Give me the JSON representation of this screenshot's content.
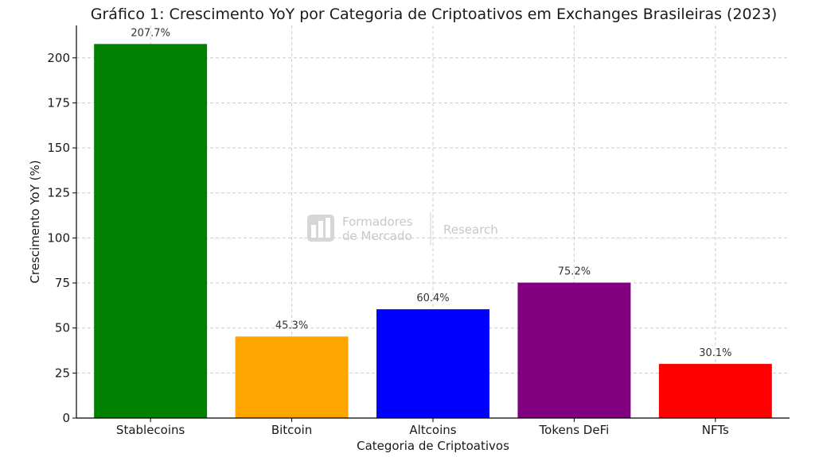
{
  "chart_data": {
    "type": "bar",
    "title": "Gráfico 1: Crescimento YoY por Categoria de Criptoativos em Exchanges Brasileiras (2023)",
    "xlabel": "Categoria de Criptoativos",
    "ylabel": "Crescimento YoY (%)",
    "categories": [
      "Stablecoins",
      "Bitcoin",
      "Altcoins",
      "Tokens DeFi",
      "NFTs"
    ],
    "values": [
      207.7,
      45.3,
      60.4,
      75.2,
      30.1
    ],
    "data_labels": [
      "207.7%",
      "45.3%",
      "60.4%",
      "75.2%",
      "30.1%"
    ],
    "colors": [
      "#008000",
      "#FFA500",
      "#0000FF",
      "#800080",
      "#FF0000"
    ],
    "ylim": [
      0,
      218
    ],
    "yticks": [
      0,
      25,
      50,
      75,
      100,
      125,
      150,
      175,
      200
    ],
    "grid": true,
    "legend": "none"
  },
  "watermark": {
    "line1": "Formadores",
    "line2": "de Mercado",
    "brand": "Research",
    "icon": "bar-chart-logo-icon"
  }
}
